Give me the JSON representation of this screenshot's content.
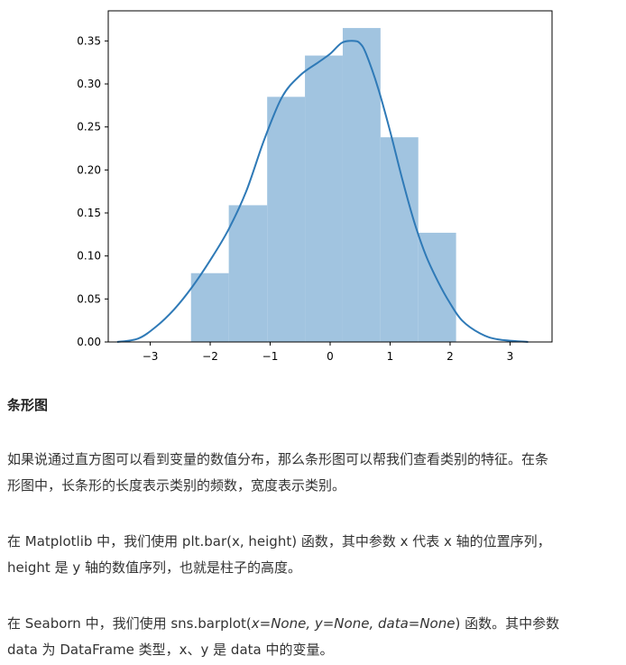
{
  "chart_data": {
    "type": "histogram",
    "title": "",
    "xlabel": "",
    "ylabel": "",
    "xlim": [
      -3.7,
      3.7
    ],
    "ylim": [
      0,
      0.385
    ],
    "xticks": [
      -3,
      -2,
      -1,
      0,
      1,
      2,
      3
    ],
    "xtick_labels": [
      "−3",
      "−2",
      "−1",
      "0",
      "1",
      "2",
      "3"
    ],
    "yticks": [
      0.0,
      0.05,
      0.1,
      0.15,
      0.2,
      0.25,
      0.3,
      0.35
    ],
    "ytick_labels": [
      "0.00",
      "0.05",
      "0.10",
      "0.15",
      "0.20",
      "0.25",
      "0.30",
      "0.35"
    ],
    "bins": [
      {
        "x0": -2.32,
        "x1": -1.69,
        "density": 0.08
      },
      {
        "x0": -1.69,
        "x1": -1.05,
        "density": 0.159
      },
      {
        "x0": -1.05,
        "x1": -0.42,
        "density": 0.285
      },
      {
        "x0": -0.42,
        "x1": 0.21,
        "density": 0.333
      },
      {
        "x0": 0.21,
        "x1": 0.84,
        "density": 0.365
      },
      {
        "x0": 0.84,
        "x1": 1.47,
        "density": 0.238
      },
      {
        "x0": 1.47,
        "x1": 2.1,
        "density": 0.127
      }
    ],
    "kde": {
      "x": [
        -3.55,
        -3.2,
        -2.9,
        -2.6,
        -2.3,
        -2.0,
        -1.7,
        -1.4,
        -1.1,
        -0.8,
        -0.5,
        -0.2,
        0.0,
        0.2,
        0.4,
        0.5,
        0.6,
        0.8,
        1.0,
        1.2,
        1.4,
        1.6,
        1.8,
        2.0,
        2.2,
        2.5,
        2.8,
        3.3
      ],
      "y": [
        0.0,
        0.004,
        0.018,
        0.038,
        0.064,
        0.095,
        0.13,
        0.175,
        0.235,
        0.285,
        0.31,
        0.325,
        0.335,
        0.348,
        0.35,
        0.347,
        0.335,
        0.295,
        0.245,
        0.19,
        0.14,
        0.1,
        0.07,
        0.045,
        0.025,
        0.01,
        0.003,
        0.0
      ]
    },
    "bar_color": "#a1c4e0",
    "line_color": "#2f7ab7",
    "grid": false
  },
  "section": {
    "heading": "条形图"
  },
  "paragraphs": {
    "p1_line1": "如果说通过直方图可以看到变量的数值分布，那么条形图可以帮我们查看类别的特征。在条",
    "p1_line2": "形图中，长条形的长度表示类别的频数，宽度表示类别。",
    "p2_line1": "在 Matplotlib 中，我们使用 plt.bar(x, height) 函数，其中参数 x 代表 x 轴的位置序列，",
    "p2_line2": "height 是 y 轴的数值序列，也就是柱子的高度。",
    "p3_line1_pre": "在 Seaborn 中，我们使用 sns.barplot(",
    "p3_line1_italic": "x=None, y=None, data=None",
    "p3_line1_post": ") 函数。其中参数",
    "p3_line2": "data 为 DataFrame 类型，x、y 是 data 中的变量。"
  }
}
